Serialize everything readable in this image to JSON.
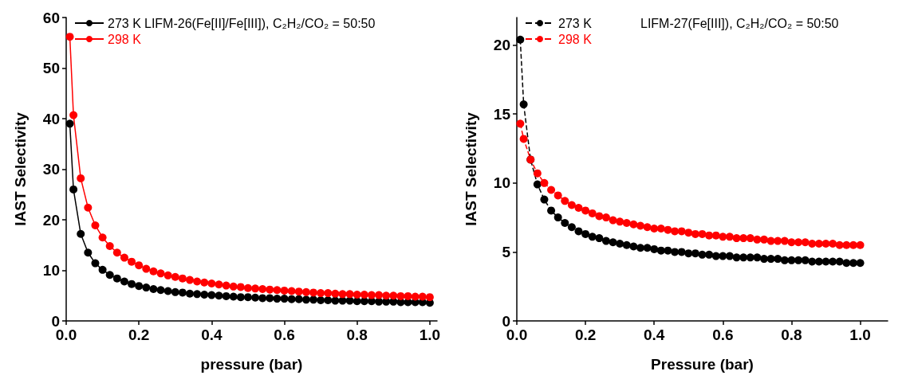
{
  "chart_data": [
    {
      "type": "line",
      "title": "LIFM-26(Fe[II]/Fe[III]), C₂H₂/CO₂ = 50:50",
      "xlabel": "pressure (bar)",
      "ylabel": "IAST Selectivity",
      "xlim": [
        0,
        1.02
      ],
      "ylim": [
        0,
        60
      ],
      "xticks": [
        {
          "value": 0,
          "label": "0.0"
        },
        {
          "value": 0.2,
          "label": "0.2"
        },
        {
          "value": 0.4,
          "label": "0.4"
        },
        {
          "value": 0.6,
          "label": "0.6"
        },
        {
          "value": 0.8,
          "label": "0.8"
        },
        {
          "value": 1,
          "label": "1.0"
        }
      ],
      "yticks": [
        0,
        10,
        20,
        30,
        40,
        50,
        60
      ],
      "legend": "top left",
      "marker": "circle",
      "grid": false,
      "x": [
        0.01,
        0.02,
        0.04,
        0.06,
        0.08,
        0.1,
        0.12,
        0.14,
        0.16,
        0.18,
        0.2,
        0.22,
        0.24,
        0.26,
        0.28,
        0.3,
        0.32,
        0.34,
        0.36,
        0.38,
        0.4,
        0.42,
        0.44,
        0.46,
        0.48,
        0.5,
        0.52,
        0.54,
        0.56,
        0.58,
        0.6,
        0.62,
        0.64,
        0.66,
        0.68,
        0.7,
        0.72,
        0.74,
        0.76,
        0.78,
        0.8,
        0.82,
        0.84,
        0.86,
        0.88,
        0.9,
        0.92,
        0.94,
        0.96,
        0.98,
        1.0
      ],
      "series": [
        {
          "name": "273 K",
          "color": "#000000",
          "values": [
            39,
            26,
            17.2,
            13.5,
            11.4,
            10.1,
            9.1,
            8.4,
            7.8,
            7.3,
            6.9,
            6.6,
            6.3,
            6.1,
            5.9,
            5.7,
            5.6,
            5.4,
            5.3,
            5.2,
            5.1,
            5.0,
            4.9,
            4.8,
            4.7,
            4.7,
            4.6,
            4.5,
            4.5,
            4.4,
            4.4,
            4.3,
            4.3,
            4.2,
            4.2,
            4.1,
            4.1,
            4.0,
            4.0,
            4.0,
            3.9,
            3.9,
            3.9,
            3.8,
            3.8,
            3.8,
            3.7,
            3.7,
            3.7,
            3.7,
            3.6
          ]
        },
        {
          "name": "298 K",
          "color": "#ff0000",
          "values": [
            56.2,
            40.7,
            28.2,
            22.4,
            18.9,
            16.5,
            14.8,
            13.5,
            12.5,
            11.7,
            11.0,
            10.3,
            9.8,
            9.4,
            9.0,
            8.7,
            8.4,
            8.1,
            7.8,
            7.6,
            7.4,
            7.2,
            7.0,
            6.8,
            6.7,
            6.5,
            6.4,
            6.3,
            6.2,
            6.1,
            6.0,
            5.9,
            5.8,
            5.7,
            5.6,
            5.5,
            5.5,
            5.4,
            5.3,
            5.3,
            5.2,
            5.2,
            5.1,
            5.1,
            5.0,
            5.0,
            4.9,
            4.9,
            4.8,
            4.8,
            4.7
          ]
        }
      ]
    },
    {
      "type": "line",
      "title": "LIFM-27(Fe[III]), C₂H₂/CO₂ = 50:50",
      "xlabel": "Pressure (bar)",
      "ylabel": "IAST Selectivity",
      "xlim": [
        0,
        1.08
      ],
      "ylim": [
        0,
        22
      ],
      "xticks": [
        {
          "value": 0,
          "label": "0.0"
        },
        {
          "value": 0.2,
          "label": "0.2"
        },
        {
          "value": 0.4,
          "label": "0.4"
        },
        {
          "value": 0.6,
          "label": "0.6"
        },
        {
          "value": 0.8,
          "label": "0.8"
        },
        {
          "value": 1,
          "label": "1.0"
        }
      ],
      "yticks": [
        0,
        5,
        10,
        15,
        20
      ],
      "legend": "top left",
      "marker": "circle",
      "grid": false,
      "x": [
        0.01,
        0.02,
        0.04,
        0.06,
        0.08,
        0.1,
        0.12,
        0.14,
        0.16,
        0.18,
        0.2,
        0.22,
        0.24,
        0.26,
        0.28,
        0.3,
        0.32,
        0.34,
        0.36,
        0.38,
        0.4,
        0.42,
        0.44,
        0.46,
        0.48,
        0.5,
        0.52,
        0.54,
        0.56,
        0.58,
        0.6,
        0.62,
        0.64,
        0.66,
        0.68,
        0.7,
        0.72,
        0.74,
        0.76,
        0.78,
        0.8,
        0.82,
        0.84,
        0.86,
        0.88,
        0.9,
        0.92,
        0.94,
        0.96,
        0.98,
        1.0
      ],
      "series": [
        {
          "name": "273 K",
          "color": "#000000",
          "line_style": "dashed",
          "values": [
            20.4,
            15.7,
            11.7,
            9.9,
            8.8,
            8.0,
            7.5,
            7.1,
            6.8,
            6.5,
            6.3,
            6.1,
            6.0,
            5.8,
            5.7,
            5.6,
            5.5,
            5.4,
            5.3,
            5.3,
            5.2,
            5.1,
            5.1,
            5.0,
            5.0,
            4.9,
            4.9,
            4.8,
            4.8,
            4.7,
            4.7,
            4.7,
            4.6,
            4.6,
            4.6,
            4.6,
            4.5,
            4.5,
            4.5,
            4.4,
            4.4,
            4.4,
            4.4,
            4.3,
            4.3,
            4.3,
            4.3,
            4.3,
            4.2,
            4.2,
            4.2
          ]
        },
        {
          "name": "298 K",
          "color": "#ff0000",
          "line_style": "dashed",
          "values": [
            14.3,
            13.2,
            11.7,
            10.7,
            10.0,
            9.5,
            9.1,
            8.7,
            8.4,
            8.2,
            8.0,
            7.8,
            7.6,
            7.5,
            7.3,
            7.2,
            7.1,
            7.0,
            6.9,
            6.8,
            6.7,
            6.7,
            6.6,
            6.5,
            6.5,
            6.4,
            6.3,
            6.3,
            6.2,
            6.2,
            6.1,
            6.1,
            6.0,
            6.0,
            6.0,
            5.9,
            5.9,
            5.8,
            5.8,
            5.8,
            5.7,
            5.7,
            5.7,
            5.6,
            5.6,
            5.6,
            5.6,
            5.5,
            5.5,
            5.5,
            5.5
          ]
        }
      ]
    }
  ]
}
